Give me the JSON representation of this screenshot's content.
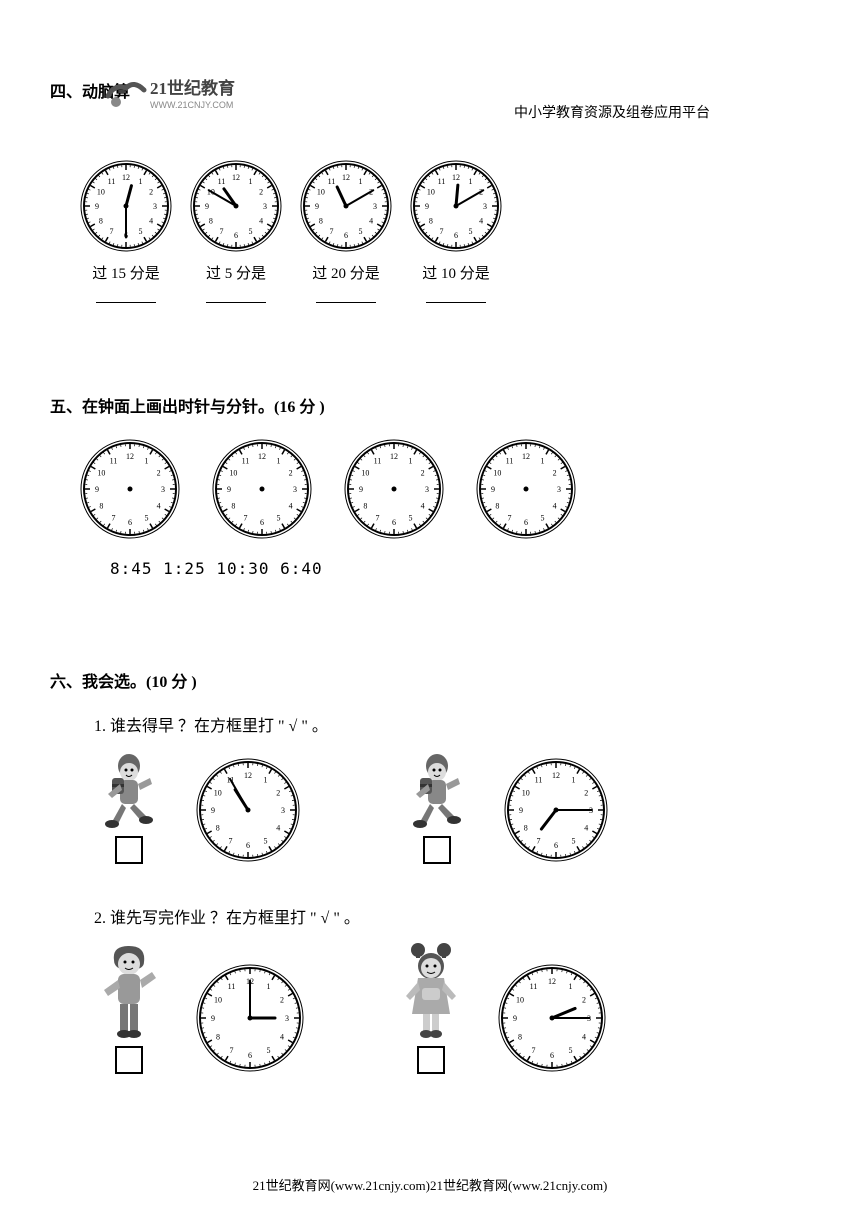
{
  "header": {
    "right_text": "中小学教育资源及组卷应用平台",
    "logo_top": "21世纪教育",
    "logo_bottom": "WWW.21CNJY.COM"
  },
  "section4": {
    "title": "四、动脑算",
    "clocks": [
      {
        "hour": 12.5,
        "minute": 30,
        "label_pre": "过 15 分是"
      },
      {
        "hour": 10.83,
        "minute": 50,
        "label_pre": "过 5 分是"
      },
      {
        "hour": 11.17,
        "minute": 10,
        "label_pre": "过 20 分是"
      },
      {
        "hour": 12.17,
        "minute": 10,
        "label_pre": "过 10 分是"
      }
    ]
  },
  "section5": {
    "title": "五、在钟面上画出时针与分针。(16 分 )",
    "times_line": "8:45 1:25 10:30 6:40",
    "clock_count": 4
  },
  "section6": {
    "title": "六、我会选。(10 分 )",
    "q1": {
      "text": "1. 谁去得早 ？在方框里打 \" √ \" 。",
      "left_clock": {
        "hour": 10.92,
        "minute": 55
      },
      "right_clock": {
        "hour": 7.25,
        "minute": 15
      }
    },
    "q2": {
      "text": "2. 谁先写完作业 ？在方框里打 \" √ \" 。",
      "left_clock": {
        "hour": 3.0,
        "minute": 0
      },
      "right_clock": {
        "hour": 2.25,
        "minute": 15
      }
    }
  },
  "footer": "21世纪教育网(www.21cnjy.com)21世纪教育网(www.21cnjy.com)",
  "style": {
    "clock_radius_s4": 42,
    "clock_radius_s5": 46,
    "clock_radius_s6a": 48,
    "clock_radius_s6b": 50,
    "clock_stroke": "#000000",
    "clock_fill": "#ffffff",
    "clock_num_fontsize": 8,
    "hand_hour_len": 0.5,
    "hand_min_len": 0.75,
    "background": "#ffffff"
  }
}
